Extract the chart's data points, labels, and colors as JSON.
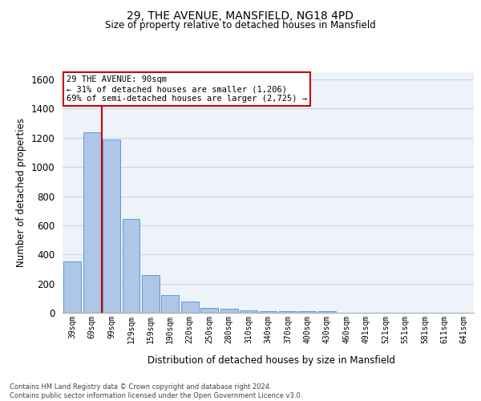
{
  "title1": "29, THE AVENUE, MANSFIELD, NG18 4PD",
  "title2": "Size of property relative to detached houses in Mansfield",
  "xlabel": "Distribution of detached houses by size in Mansfield",
  "ylabel": "Number of detached properties",
  "footnote": "Contains HM Land Registry data © Crown copyright and database right 2024.\nContains public sector information licensed under the Open Government Licence v3.0.",
  "categories": [
    "39sqm",
    "69sqm",
    "99sqm",
    "129sqm",
    "159sqm",
    "190sqm",
    "220sqm",
    "250sqm",
    "280sqm",
    "310sqm",
    "340sqm",
    "370sqm",
    "400sqm",
    "430sqm",
    "460sqm",
    "491sqm",
    "521sqm",
    "551sqm",
    "581sqm",
    "611sqm",
    "641sqm"
  ],
  "values": [
    352,
    1235,
    1190,
    645,
    260,
    120,
    75,
    35,
    25,
    15,
    10,
    10,
    10,
    10,
    0,
    0,
    0,
    0,
    0,
    0,
    0
  ],
  "bar_color": "#aec6e8",
  "bar_edge_color": "#5b9bd5",
  "grid_color": "#c8d4e8",
  "background_color": "#eef2f9",
  "vline_color": "#cc0000",
  "annotation_text": "29 THE AVENUE: 90sqm\n← 31% of detached houses are smaller (1,206)\n69% of semi-detached houses are larger (2,725) →",
  "annotation_box_color": "#ffffff",
  "annotation_box_edge": "#cc0000",
  "ylim": [
    0,
    1650
  ],
  "yticks": [
    0,
    200,
    400,
    600,
    800,
    1000,
    1200,
    1400,
    1600
  ]
}
